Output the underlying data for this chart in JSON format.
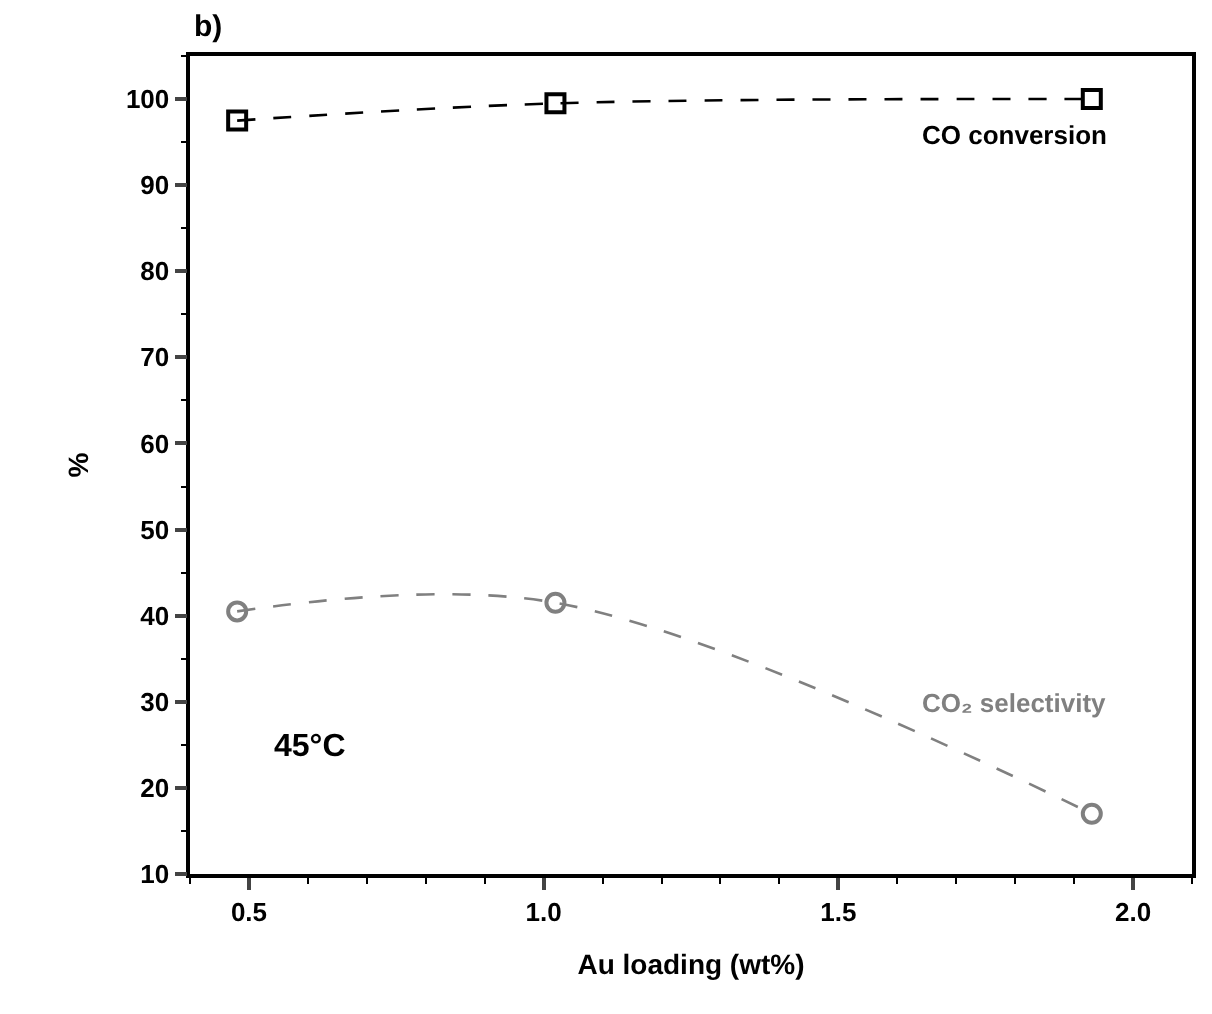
{
  "chart_data": {
    "type": "line",
    "xlabel": "Au loading (wt%)",
    "ylabel": "%",
    "x": [
      0.48,
      1.02,
      1.93
    ],
    "series": [
      {
        "name": "CO conversion",
        "color": "#000000",
        "marker": "square",
        "values": [
          97.5,
          99.5,
          100
        ]
      },
      {
        "name": "CO₂ selectivity",
        "color": "#808080",
        "marker": "circle",
        "values": [
          40.5,
          41.5,
          17
        ]
      }
    ],
    "line_style": "dashed",
    "xlim": [
      0.4,
      2.1
    ],
    "xticks": [
      0.5,
      {
        "value": 1,
        "label": "1.0"
      },
      1.5,
      {
        "value": 2,
        "label": "2.0"
      }
    ],
    "ylim": [
      10,
      105
    ],
    "yticks": [
      10,
      20,
      30,
      40,
      50,
      60,
      70,
      80,
      90,
      100
    ],
    "annotations": [
      "b)",
      "45°C"
    ],
    "legend": false
  }
}
